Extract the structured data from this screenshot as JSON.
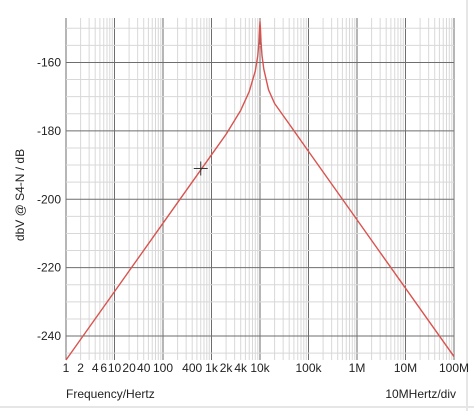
{
  "chart_data": {
    "type": "line",
    "xlabel": "Frequency/Hertz",
    "ylabel": "dbV @ S4-N / dB",
    "x_scale_note": "10MHertz/div",
    "x_scale": "log",
    "xlim": [
      1,
      100000000
    ],
    "ylim": [
      -247,
      -147
    ],
    "grid": true,
    "x_ticks": [
      {
        "value": 1,
        "label": "1"
      },
      {
        "value": 2,
        "label": "2"
      },
      {
        "value": 4,
        "label": "4"
      },
      {
        "value": 6,
        "label": "6"
      },
      {
        "value": 10,
        "label": "10"
      },
      {
        "value": 20,
        "label": "20"
      },
      {
        "value": 40,
        "label": "40"
      },
      {
        "value": 100,
        "label": "100"
      },
      {
        "value": 400,
        "label": "400"
      },
      {
        "value": 1000,
        "label": "1k"
      },
      {
        "value": 2000,
        "label": "2k"
      },
      {
        "value": 4000,
        "label": "4k"
      },
      {
        "value": 10000,
        "label": "10k"
      },
      {
        "value": 100000,
        "label": "100k"
      },
      {
        "value": 1000000,
        "label": "1M"
      },
      {
        "value": 10000000,
        "label": "10M"
      },
      {
        "value": 100000000,
        "label": "100M"
      }
    ],
    "y_ticks": [
      {
        "value": -160,
        "label": "-160"
      },
      {
        "value": -180,
        "label": "-180"
      },
      {
        "value": -200,
        "label": "-200"
      },
      {
        "value": -220,
        "label": "-220"
      },
      {
        "value": -240,
        "label": "-240"
      }
    ],
    "series": [
      {
        "color": "#d9534f",
        "x": [
          1,
          10,
          100,
          1000,
          2000,
          4000,
          6000,
          8000,
          9000,
          9500,
          9800,
          10000,
          10200,
          10500,
          11000,
          12000,
          15000,
          20000,
          40000,
          100000,
          1000000,
          10000000,
          100000000
        ],
        "y": [
          -247,
          -227,
          -207,
          -187,
          -181,
          -174,
          -168.5,
          -162.5,
          -158,
          -154,
          -150,
          -148,
          -150,
          -154,
          -158,
          -162,
          -168,
          -172,
          -178,
          -186,
          -206,
          -226,
          -246
        ]
      }
    ],
    "marker": {
      "x": 600,
      "y": -191
    }
  }
}
